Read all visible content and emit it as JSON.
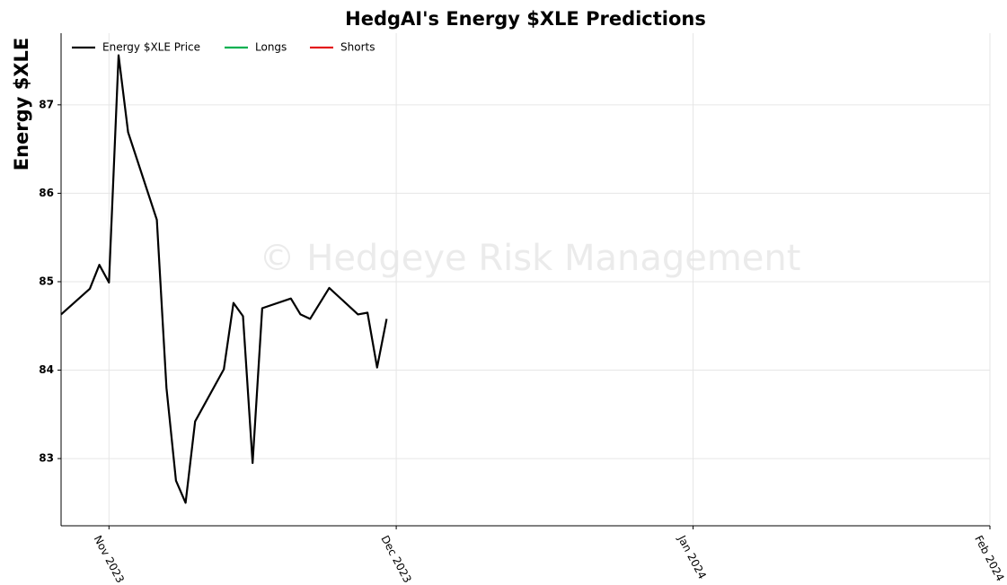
{
  "chart_data": {
    "type": "line",
    "title": "HedgAI's Energy $XLE Predictions",
    "ylabel": "Energy $XLE",
    "watermark": "© Hedgeye Risk Management",
    "x": [
      "2023-10-27",
      "2023-10-30",
      "2023-10-31",
      "2023-11-01",
      "2023-11-02",
      "2023-11-03",
      "2023-11-06",
      "2023-11-07",
      "2023-11-08",
      "2023-11-09",
      "2023-11-10",
      "2023-11-13",
      "2023-11-14",
      "2023-11-15",
      "2023-11-16",
      "2023-11-17",
      "2023-11-20",
      "2023-11-21",
      "2023-11-22",
      "2023-11-24",
      "2023-11-27",
      "2023-11-28",
      "2023-11-29",
      "2023-11-30"
    ],
    "series": [
      {
        "name": "Energy $XLE Price",
        "color": "#000000",
        "values": [
          84.63,
          84.92,
          85.19,
          84.99,
          87.56,
          86.69,
          85.7,
          83.8,
          82.75,
          82.5,
          83.42,
          84.01,
          84.76,
          84.61,
          82.95,
          84.7,
          84.81,
          84.63,
          84.58,
          84.93,
          84.63,
          84.65,
          84.03,
          84.58
        ]
      },
      {
        "name": "Longs",
        "color": "#00b050",
        "x": [],
        "values": []
      },
      {
        "name": "Shorts",
        "color": "#e31a1c",
        "x": [],
        "values": []
      }
    ],
    "xlim": [
      "2023-10-27",
      "2024-02-01"
    ],
    "xticks": [
      {
        "value": "2023-11-01",
        "label": "Nov 2023"
      },
      {
        "value": "2023-12-01",
        "label": "Dec 2023"
      },
      {
        "value": "2024-01-01",
        "label": "Jan 2024"
      },
      {
        "value": "2024-02-01",
        "label": "Feb 2024"
      }
    ],
    "ylim": [
      82.24,
      87.81
    ],
    "yticks": [
      83,
      84,
      85,
      86,
      87
    ],
    "grid": true,
    "legend": "upper left"
  }
}
